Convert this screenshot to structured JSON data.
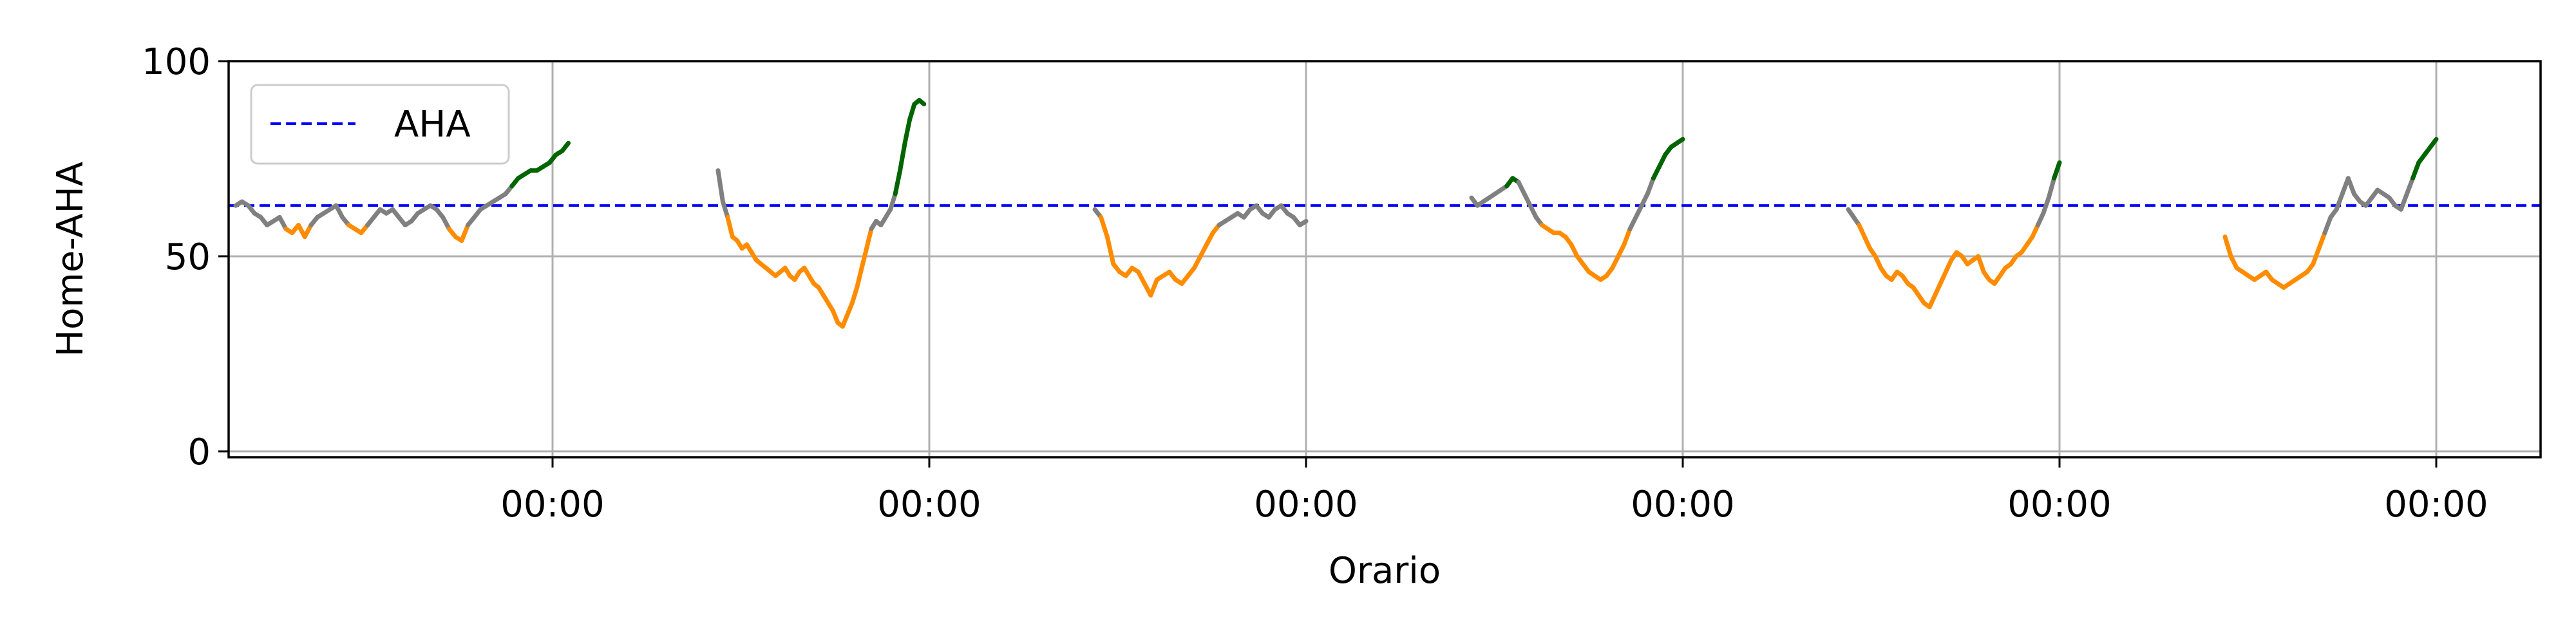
{
  "chart_data": {
    "type": "line",
    "title": "",
    "xlabel": "Orario",
    "ylabel": "Home-AHA",
    "ylim": [
      0,
      100
    ],
    "yticks": [
      0,
      50,
      100
    ],
    "xticks": [
      "00:00",
      "00:00",
      "00:00",
      "00:00",
      "00:00",
      "00:00"
    ],
    "grid": true,
    "legend": {
      "placement": "top-left",
      "entries": [
        "AHA"
      ]
    },
    "reference_line": {
      "name": "AHA",
      "value": 63,
      "color": "#0000ff",
      "style": "dashed"
    },
    "colors": {
      "green": "#006400",
      "grey": "#808080",
      "orange": "#ff8c00",
      "gold": "#ffa500"
    },
    "color_rule": "green above 69, grey 58-69, orange below 58",
    "nights": [
      {
        "start_hour": -6.0,
        "end_hour": 0.3,
        "values": [
          63,
          64,
          63,
          61,
          60,
          58,
          59,
          60,
          57,
          56,
          58,
          55,
          58,
          60,
          61,
          62,
          63,
          60,
          58,
          57,
          56,
          58,
          60,
          62,
          61,
          62,
          60,
          58,
          59,
          61,
          62,
          63,
          62,
          60,
          57,
          55,
          54,
          58,
          60,
          62,
          63,
          64,
          65,
          66,
          68,
          70,
          71,
          72,
          72,
          73,
          74,
          76,
          77,
          79
        ]
      },
      {
        "start_hour": -4.0,
        "end_hour": -0.1,
        "values": [
          72,
          64,
          60,
          55,
          54,
          52,
          53,
          51,
          49,
          48,
          47,
          46,
          45,
          46,
          47,
          45,
          44,
          46,
          47,
          45,
          43,
          42,
          40,
          38,
          36,
          33,
          32,
          35,
          38,
          42,
          47,
          52,
          57,
          59,
          58,
          60,
          62,
          66,
          72,
          79,
          85,
          89,
          90,
          89
        ]
      },
      {
        "start_hour": -4.0,
        "end_hour": 0.0,
        "values": [
          62,
          60,
          55,
          48,
          46,
          45,
          47,
          46,
          43,
          40,
          44,
          45,
          46,
          44,
          43,
          45,
          47,
          50,
          53,
          56,
          58,
          59,
          60,
          61,
          60,
          62,
          63,
          61,
          60,
          62,
          63,
          61,
          60,
          58,
          59
        ]
      },
      {
        "start_hour": -4.0,
        "end_hour": 0.0,
        "values": [
          65,
          63,
          64,
          65,
          66,
          67,
          68,
          70,
          69,
          66,
          63,
          60,
          58,
          57,
          56,
          56,
          55,
          53,
          50,
          48,
          46,
          45,
          44,
          45,
          47,
          50,
          53,
          57,
          60,
          63,
          66,
          70,
          73,
          76,
          78,
          79,
          80
        ]
      },
      {
        "start_hour": -4.0,
        "end_hour": 0.0,
        "values": [
          62,
          60,
          58,
          55,
          52,
          50,
          47,
          45,
          44,
          46,
          45,
          43,
          42,
          40,
          38,
          37,
          40,
          43,
          46,
          49,
          51,
          50,
          48,
          49,
          50,
          46,
          44,
          43,
          45,
          47,
          48,
          50,
          51,
          53,
          55,
          58,
          61,
          65,
          70,
          74
        ]
      },
      {
        "start_hour": -4.0,
        "end_hour": 0.0,
        "values": [
          55,
          50,
          47,
          46,
          45,
          44,
          45,
          46,
          44,
          43,
          42,
          43,
          44,
          45,
          46,
          48,
          52,
          56,
          60,
          62,
          66,
          70,
          66,
          64,
          63,
          65,
          67,
          66,
          65,
          63,
          62,
          66,
          70,
          74,
          76,
          78,
          80
        ]
      }
    ]
  }
}
